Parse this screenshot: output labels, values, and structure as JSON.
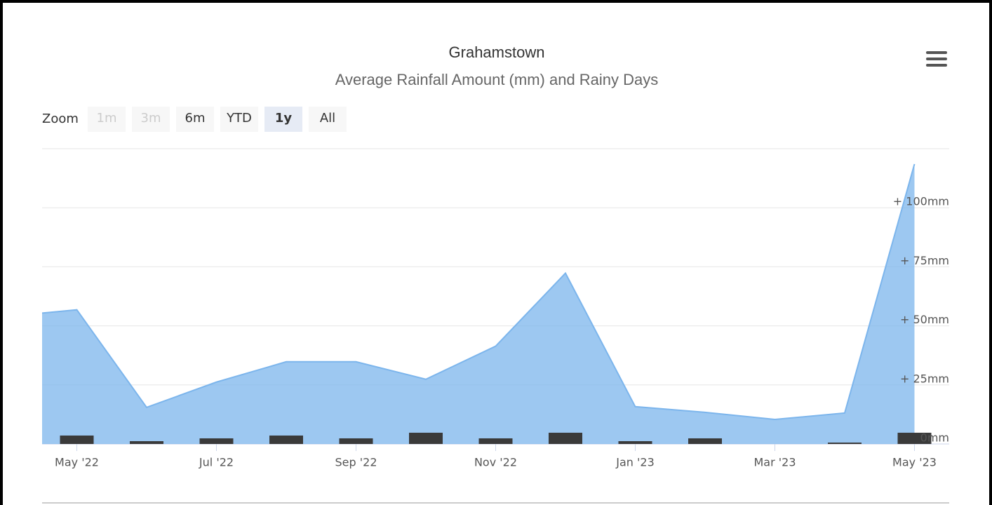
{
  "chart_data": {
    "type": "area",
    "title": "Grahamstown",
    "subtitle": "Average Rainfall Amount (mm) and Rainy Days",
    "zoom": {
      "label": "Zoom",
      "buttons": [
        "1m",
        "3m",
        "6m",
        "YTD",
        "1y",
        "All"
      ],
      "selected": "1y",
      "disabled": [
        "1m",
        "3m"
      ]
    },
    "categories": [
      null,
      "May '22",
      null,
      "Jul '22",
      null,
      "Sep '22",
      null,
      "Nov '22",
      null,
      "Jan '23",
      null,
      "Mar '23",
      null,
      "May '23"
    ],
    "series": [
      {
        "type": "area",
        "color": "#7cb5ec",
        "values": [
          54,
          56.8,
          15.5,
          26.2,
          34.8,
          34.8,
          27.4,
          41.4,
          72.3,
          15.8,
          13.4,
          10.4,
          13.1,
          118.5
        ]
      },
      {
        "type": "bar",
        "axis": "y2",
        "color": "#3a3a3a",
        "values": [
          null,
          3,
          1,
          2,
          3,
          2,
          4,
          2,
          4,
          1,
          2,
          0,
          0.5,
          4
        ]
      }
    ],
    "ylim": [
      0,
      125
    ],
    "yticks": [
      {
        "value": 0,
        "label": "0mm"
      },
      {
        "value": 25,
        "label": "+ 25mm"
      },
      {
        "value": 50,
        "label": "+ 50mm"
      },
      {
        "value": 75,
        "label": "+ 75mm"
      },
      {
        "value": 100,
        "label": "+ 100mm"
      }
    ],
    "y2lim": [
      0,
      105
    ],
    "grid": true
  }
}
